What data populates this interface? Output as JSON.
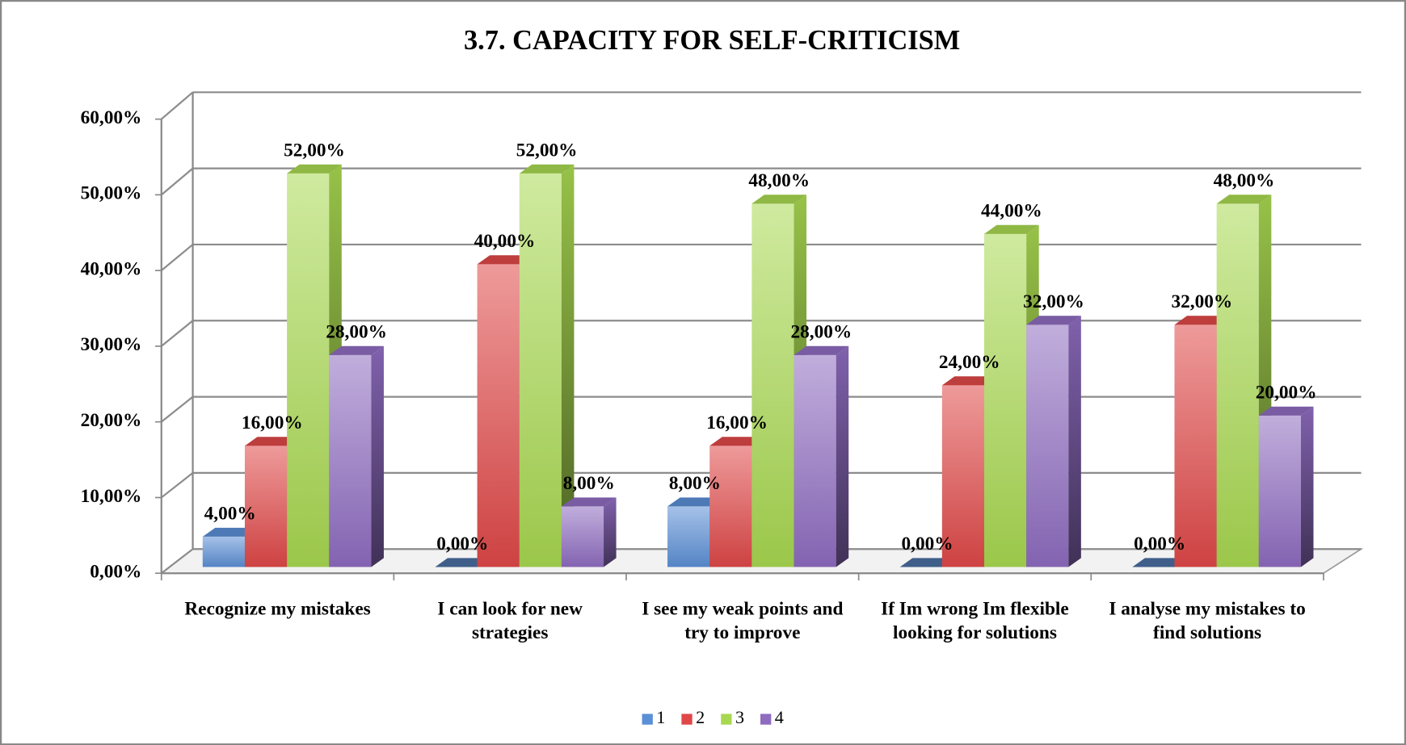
{
  "chart_data": {
    "type": "bar3d",
    "title": "3.7. CAPACITY FOR SELF-CRITICISM",
    "categories": [
      "Recognize my mistakes",
      "I can look for new strategies",
      "I see my weak points and try to improve",
      "If Im wrong Im flexible looking for solutions",
      "I analyse my mistakes to find solutions"
    ],
    "series": [
      {
        "name": "1",
        "color": "#5b8fd6",
        "values": [
          4,
          0,
          8,
          0,
          0
        ],
        "value_labels": [
          "4,00%",
          "0,00%",
          "8,00%",
          "0,00%",
          "0,00%"
        ]
      },
      {
        "name": "2",
        "color": "#e04848",
        "values": [
          16,
          40,
          16,
          24,
          32
        ],
        "value_labels": [
          "16,00%",
          "40,00%",
          "16,00%",
          "24,00%",
          "32,00%"
        ]
      },
      {
        "name": "3",
        "color": "#a8d850",
        "values": [
          52,
          52,
          48,
          44,
          48
        ],
        "value_labels": [
          "52,00%",
          "52,00%",
          "48,00%",
          "44,00%",
          "48,00%"
        ]
      },
      {
        "name": "4",
        "color": "#8e6cc0",
        "values": [
          28,
          8,
          28,
          32,
          20
        ],
        "value_labels": [
          "28,00%",
          "8,00%",
          "28,00%",
          "32,00%",
          "20,00%"
        ]
      }
    ],
    "ylim": [
      0,
      60
    ],
    "yticks": [
      {
        "value": 0,
        "label": "0,00%"
      },
      {
        "value": 10,
        "label": "10,00%"
      },
      {
        "value": 20,
        "label": "20,00%"
      },
      {
        "value": 30,
        "label": "30,00%"
      },
      {
        "value": 40,
        "label": "40,00%"
      },
      {
        "value": 50,
        "label": "50,00%"
      },
      {
        "value": 60,
        "label": "60,00%"
      }
    ],
    "grid": true
  }
}
